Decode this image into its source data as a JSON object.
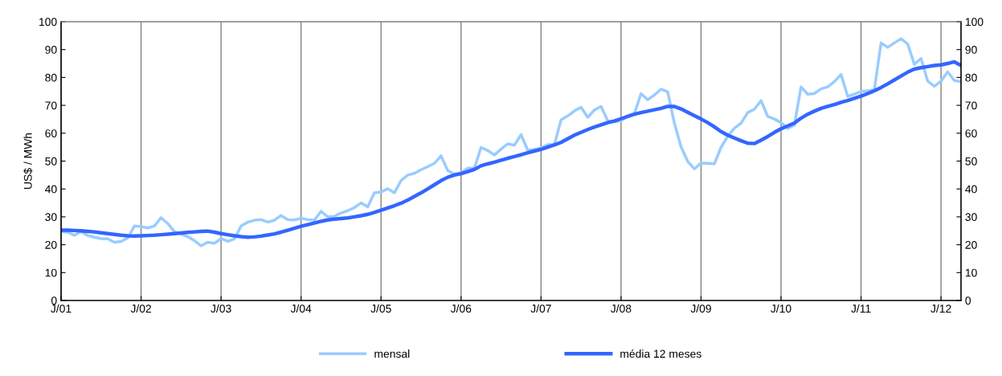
{
  "chart_data": {
    "type": "line",
    "ylabel": "US$ / MWh",
    "categories": [
      "J/01",
      null,
      null,
      null,
      null,
      null,
      null,
      null,
      null,
      null,
      null,
      null,
      "J/02",
      null,
      null,
      null,
      null,
      null,
      null,
      null,
      null,
      null,
      null,
      null,
      "J/03",
      null,
      null,
      null,
      null,
      null,
      null,
      null,
      null,
      null,
      null,
      null,
      "J/04",
      null,
      null,
      null,
      null,
      null,
      null,
      null,
      null,
      null,
      null,
      null,
      "J/05",
      null,
      null,
      null,
      null,
      null,
      null,
      null,
      null,
      null,
      null,
      null,
      "J/06",
      null,
      null,
      null,
      null,
      null,
      null,
      null,
      null,
      null,
      null,
      null,
      "J/07",
      null,
      null,
      null,
      null,
      null,
      null,
      null,
      null,
      null,
      null,
      null,
      "J/08",
      null,
      null,
      null,
      null,
      null,
      null,
      null,
      null,
      null,
      null,
      null,
      "J/09",
      null,
      null,
      null,
      null,
      null,
      null,
      null,
      null,
      null,
      null,
      null,
      "J/10",
      null,
      null,
      null,
      null,
      null,
      null,
      null,
      null,
      null,
      null,
      null,
      "J/11",
      null,
      null,
      null,
      null,
      null,
      null,
      null,
      null,
      null,
      null,
      null,
      "J/12",
      null,
      null,
      null
    ],
    "series": [
      {
        "name": "mensal",
        "color": "#99ccff",
        "values": [
          24.7,
          24.5,
          23.4,
          24.7,
          23.3,
          22.7,
          22.2,
          22.1,
          20.9,
          21.2,
          22.4,
          26.7,
          26.5,
          26,
          26.7,
          29.7,
          27.6,
          24.7,
          23.8,
          22.9,
          21.5,
          19.6,
          20.9,
          20.5,
          22.2,
          21.2,
          22.1,
          26.7,
          28.1,
          28.8,
          29,
          28.1,
          28.8,
          30.5,
          29,
          28.9,
          29.5,
          29,
          28.8,
          32,
          30,
          30.2,
          31.4,
          32.2,
          33.3,
          35,
          33.6,
          38.6,
          38.9,
          40.1,
          38.6,
          43,
          45,
          45.6,
          46.9,
          48,
          49.2,
          51.9,
          46.6,
          45.3,
          45.8,
          47.5,
          47.5,
          54.9,
          53.8,
          52.2,
          54.3,
          56.2,
          55.7,
          59.5,
          53.9,
          54.2,
          54.7,
          55.9,
          55.9,
          64.8,
          66.2,
          68,
          69.3,
          65.7,
          68.3,
          69.6,
          64.5,
          64.1,
          64.5,
          66.1,
          67,
          74.2,
          72,
          73.7,
          75.8,
          74.8,
          63.6,
          55.1,
          49.9,
          47.2,
          49.3,
          49.2,
          49,
          54.9,
          58.9,
          61.8,
          63.6,
          67.4,
          68.6,
          71.7,
          66,
          65.1,
          63.8,
          61.7,
          62.9,
          76.6,
          74,
          74.2,
          75.9,
          76.6,
          78.5,
          81.1,
          73.2,
          74,
          75,
          75.2,
          75.6,
          92.4,
          90.8,
          92.4,
          93.9,
          92,
          84.7,
          86.8,
          78.7,
          76.8,
          78.7,
          82,
          78.9,
          78.5
        ]
      },
      {
        "name": "média 12 meses",
        "color": "#3366ff",
        "values": [
          25.2,
          25.2,
          25.1,
          25,
          24.8,
          24.6,
          24.3,
          24,
          23.7,
          23.4,
          23.2,
          23.1,
          23.2,
          23.3,
          23.4,
          23.6,
          23.8,
          24,
          24.2,
          24.4,
          24.6,
          24.8,
          24.9,
          24.5,
          24,
          23.6,
          23.2,
          22.9,
          22.7,
          22.8,
          23.1,
          23.5,
          23.9,
          24.5,
          25.2,
          25.9,
          26.6,
          27.2,
          27.8,
          28.4,
          28.9,
          29.2,
          29.4,
          29.6,
          30,
          30.4,
          30.9,
          31.6,
          32.4,
          33.2,
          34,
          34.9,
          36,
          37.3,
          38.6,
          40,
          41.5,
          43,
          44.2,
          45,
          45.5,
          46.2,
          47,
          48.3,
          49,
          49.6,
          50.3,
          51,
          51.6,
          52.3,
          53,
          53.6,
          54.2,
          55,
          55.8,
          56.7,
          58,
          59.3,
          60.3,
          61.3,
          62.2,
          63,
          63.8,
          64.4,
          65.2,
          66,
          66.8,
          67.4,
          67.9,
          68.4,
          68.9,
          69.6,
          69.6,
          68.7,
          67.5,
          66.3,
          65.1,
          63.8,
          62.3,
          60.6,
          59.3,
          58.3,
          57.3,
          56.4,
          56.3,
          57.5,
          58.8,
          60.3,
          61.6,
          62.6,
          63.6,
          65.4,
          66.8,
          67.9,
          68.9,
          69.6,
          70.3,
          71.1,
          71.7,
          72.5,
          73.3,
          74.2,
          75.2,
          76.4,
          77.7,
          79.1,
          80.5,
          81.9,
          83,
          83.5,
          83.9,
          84.3,
          84.5,
          85,
          85.6,
          84.3
        ]
      }
    ],
    "ylim": [
      0,
      100
    ],
    "yticks": [
      0,
      10,
      20,
      30,
      40,
      50,
      60,
      70,
      80,
      90,
      100
    ],
    "y2lim": [
      0,
      100
    ],
    "y2ticks": [
      0,
      10,
      20,
      30,
      40,
      50,
      60,
      70,
      80,
      90,
      100
    ],
    "grid": "x",
    "legend": "bottom",
    "marker": "none",
    "line_style": "solid"
  }
}
